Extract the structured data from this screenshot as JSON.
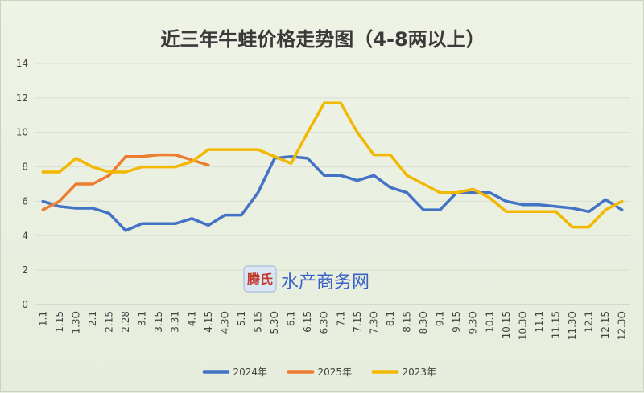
{
  "chart_data": {
    "type": "line",
    "title": "近三年牛蛙价格走势图（4-8两以上）",
    "xlabel": "",
    "ylabel": "",
    "ylim": [
      0,
      14
    ],
    "yticks": [
      0,
      2,
      4,
      6,
      8,
      10,
      12,
      14
    ],
    "grid": true,
    "legend_position": "bottom",
    "categories": [
      "1.1",
      "1.15",
      "1.3O",
      "2.1",
      "2.15",
      "2.28",
      "3.1",
      "3.15",
      "3.31",
      "4.1",
      "4.15",
      "4.3O",
      "5.1",
      "5.15",
      "5.3O",
      "6.1",
      "6.15",
      "6.3O",
      "7.1",
      "7.15",
      "7.3O",
      "8.1",
      "8.15",
      "8.3O",
      "9.1",
      "9.15",
      "9.3O",
      "10.1",
      "10.15",
      "10.3O",
      "11.1",
      "11.15",
      "11.3O",
      "12.1",
      "12.15",
      "12.3O"
    ],
    "series": [
      {
        "name": "2024年",
        "color": "#4472c4",
        "values": [
          6.0,
          5.7,
          5.6,
          5.6,
          5.3,
          4.3,
          4.7,
          4.7,
          4.7,
          5.0,
          4.6,
          5.2,
          5.2,
          6.5,
          8.5,
          8.6,
          8.5,
          7.5,
          7.5,
          7.2,
          7.5,
          6.8,
          6.5,
          5.5,
          5.5,
          6.5,
          6.5,
          6.5,
          6.0,
          5.8,
          5.8,
          5.7,
          5.6,
          5.4,
          6.1,
          5.5
        ]
      },
      {
        "name": "2025年",
        "color": "#ed7d31",
        "values": [
          5.5,
          6.0,
          7.0,
          7.0,
          7.5,
          8.6,
          8.6,
          8.7,
          8.7,
          8.4,
          8.1,
          null,
          null,
          null,
          null,
          null,
          null,
          null,
          null,
          null,
          null,
          null,
          null,
          null,
          null,
          null,
          null,
          null,
          null,
          null,
          null,
          null,
          null,
          null,
          null,
          null
        ]
      },
      {
        "name": "2023年",
        "color": "#f2b800",
        "values": [
          7.7,
          7.7,
          8.5,
          8.0,
          7.7,
          7.7,
          8.0,
          8.0,
          8.0,
          8.3,
          9.0,
          9.0,
          9.0,
          9.0,
          8.6,
          8.2,
          10.0,
          11.7,
          11.7,
          10.0,
          8.7,
          8.7,
          7.5,
          7.0,
          6.5,
          6.5,
          6.7,
          6.2,
          5.4,
          5.4,
          5.4,
          5.4,
          4.5,
          4.5,
          5.5,
          6.0
        ]
      }
    ]
  },
  "watermark": {
    "logo_text": "腾氏",
    "text": "水产商务网"
  }
}
